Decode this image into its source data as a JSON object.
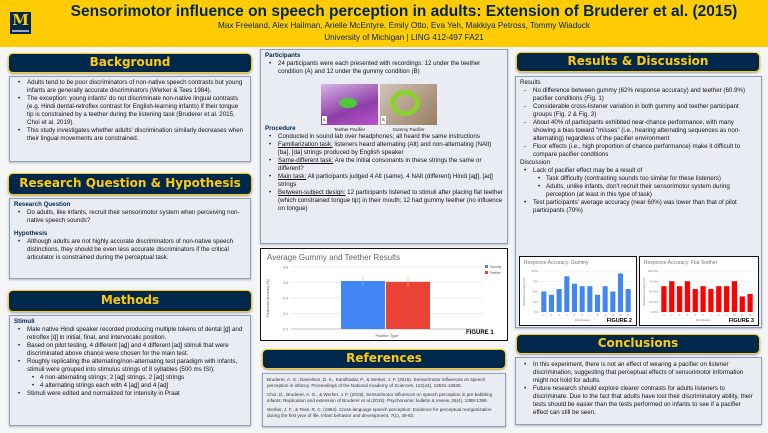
{
  "header": {
    "logo": "M",
    "title": "Sensorimotor influence on speech perception in adults: Extension of Bruderer et al. (2015)",
    "authors": "Max Freeland, Alex Hailman, Arielle McEntyre, Emily Otto, Eva Yeh, Makkiya Petross, Tommy Wiaduck",
    "affiliation": "University of Michigan | LING 412-497 FA21"
  },
  "background": {
    "title": "Background",
    "items": [
      "Adults tend to be poor discriminators of non-native speech contrasts but young infants are generally accurate discriminators (Werker & Tees 1984).",
      "The exception: young infants' do not discriminate non-native lingual contrasts (e.g. Hindi dental-retroflex contrast for English-learning infants) if their tongue tip is constrained by a teether during the listening task (Bruderer et al. 2015, Choi et al. 2019).",
      "This study investigates whether adults' discrimination similarly decreases when their lingual movements are constrained."
    ]
  },
  "rq": {
    "title": "Research Question & Hypothesis",
    "q_head": "Research Question",
    "q": "Do adults, like infants, recruit their sensorimotor system when perceiving non-native speech sounds?",
    "h_head": "Hypothesis",
    "h": "Although adults are not highly accurate discriminators of non-native speech distinctions, they should be even less accurate discriminators if the critical articulator is constrained during the perceptual task."
  },
  "methods": {
    "title": "Methods",
    "stim_head": "Stimuli",
    "items": [
      "Male native Hindi speaker recorded producing multiple tokens of dental [d̪] and retroflex [ɖ] in initial, final, and intervocalic position.",
      "Based on pilot testing, 4 different [ad̪] and 4 different [aɖ] stimuli that were discriminated above chance were chosen for the main test.",
      "Roughly replicating the alternating/non-alternating test paradigm with infants, stimuli were grouped into stimulus strings of 8 syllables (500 ms ISI):"
    ],
    "sub": [
      "4 non-alternating strings; 2 [ad̪] strings, 2 [aɖ] strings",
      "4 alternating strings each with 4 [ad̪] and 4 [aɖ]"
    ],
    "last": "Stimuli were edited and normalized for intensity in Praat"
  },
  "participants": {
    "head": "Participants",
    "text": "24 participants were each presented with recordings: 12 under the teether condition (A) and 12 under the gummy condition (B)",
    "img_a": "Teether Pacifier",
    "img_b": "Gummy Pacifier",
    "tag_a": "A",
    "tag_b": "B"
  },
  "procedure": {
    "head": "Procedure",
    "items": [
      {
        "u": "",
        "t": "Conducted in sound lab over headphones; all heard the same instructions"
      },
      {
        "u": "Familiarization task:",
        "t": " listeners heard alternating (Alt) and non-alternating (NAlt) [ba], [da] strings produced by English speaker"
      },
      {
        "u": "Same-different task:",
        "t": " Are the initial consonants in these strings the same or different?"
      },
      {
        "u": "Main task:",
        "t": " All participants judged 4 Alt (same), 4 NAlt (different) Hindi [ad̪], [aɖ] strings"
      },
      {
        "u": "Between-subject design:",
        "t": " 12 participants listened to stimuli after placing flat teether (which constrained tongue tip) in their mouth; 12 had gummy teether (no influence on tongue)"
      }
    ]
  },
  "chart_data": [
    {
      "type": "bar",
      "title": "Average Gummy and Teether Results",
      "xlabel": "Pacifier Type",
      "ylabel": "Response Accuracy (%)",
      "ylim": [
        0,
        0.8
      ],
      "yticks": [
        "0.0",
        "0.2",
        "0.4",
        "0.6",
        "0.8"
      ],
      "series": [
        {
          "name": "Gummy",
          "values": [
            0.62
          ],
          "color": "#4285F4"
        },
        {
          "name": "Teether",
          "values": [
            0.609
          ],
          "color": "#EA4335"
        }
      ],
      "legend": "right",
      "figure": "FIGURE 1"
    },
    {
      "type": "bar",
      "title": "Response Accuracy: Gummy",
      "xlabel": "Participants",
      "ylabel": "Response Accuracy (%)",
      "ylim": [
        0,
        100
      ],
      "yticks": [
        "0%",
        "25%",
        "50%",
        "75%",
        "100%"
      ],
      "categories": [
        "1",
        "2",
        "3",
        "4",
        "5",
        "6",
        "7",
        "8",
        "9",
        "10",
        "11",
        "12"
      ],
      "values": [
        50,
        42,
        56,
        87,
        69,
        63,
        63,
        42,
        63,
        50,
        94,
        56
      ],
      "color": "#4285F4",
      "figure": "FIGURE 2"
    },
    {
      "type": "bar",
      "title": "Response Accuracy: Flat Teether",
      "xlabel": "Participants",
      "ylabel": "Response Accuracy (%)",
      "ylim": [
        0,
        100
      ],
      "yticks": [
        "0.00%",
        "25.00%",
        "50.00%",
        "75.00%",
        "100.00%"
      ],
      "categories": [
        "1",
        "2",
        "3",
        "4",
        "5",
        "6",
        "7",
        "8",
        "9",
        "10",
        "11",
        "12"
      ],
      "values": [
        63,
        75,
        63,
        75,
        56,
        63,
        56,
        63,
        63,
        75,
        38,
        44
      ],
      "color": "#FF0000",
      "figure": "FIGURE 3"
    }
  ],
  "references": {
    "title": "References",
    "items": [
      "Bruderer, A. G., Danielson, D. K., Kandhadai, P., & Werker, J. F. (2015). Sensorimotor influences on speech perception in infancy. Proceedings of the National Academy of Sciences, 112(44), 13531-13536.",
      "Choi, D., Bruderer, A. G., & Werker, J. F. (2019). Sensorimotor influences on speech perception in pre-babbling infants: Replication and extension of Bruderer et al.(2015). Psychonomic bulletin & review, 26(4), 1388-1399.",
      "Werker, J. F., & Tees, R. C. (1984). Cross-language speech perception: Evidence for perceptual reorganization during the first year of life. Infant behavior and development, 7(1), 49-63."
    ]
  },
  "results": {
    "title": "Results & Discussion",
    "r_head": "Results",
    "items": [
      "No difference between gummy (62% response accuracy) and teether (60.9%) pacifier conditions (Fig. 1)",
      "Considerable cross-listener variation in both gummy and teether participant groups (Fig. 2 & Fig. 3)",
      "About 40% of participants exhibited near-chance performance, with many showing a bias toward \"misses\" (i.e., hearing alternating sequences as non-alternating) regardless of the pacifier environment",
      "Floor effects (i.e., high proportion of chance performance) make it difficult to compare pacifier conditions"
    ],
    "d_head": "Discussion",
    "d1": "Lack of pacifier effect may be a result of",
    "d_sub": [
      "Task difficulty (contrasting sounds too similar for these listeners)",
      "Adults, unlike infants, don't recruit their sensorimotor system during perception (at least in this type of task)"
    ],
    "d2": "Test participants' average accuracy (near 60%) was lower than that of pilot participants (70%)"
  },
  "conclusions": {
    "title": "Conclusions",
    "items": [
      "In this experiment, there is not an effect of wearing a pacifier on listener discrimination, suggesting that perceptual effects of sensorimotor information might not hold for adults.",
      "Future research should explore clearer contrasts for adults listeners to discriminate. Due to the fact that adults have lost their discriminatory ability, their tests should be easier than the tests performed on infants to see if a pacifier effect can still be seen."
    ]
  }
}
